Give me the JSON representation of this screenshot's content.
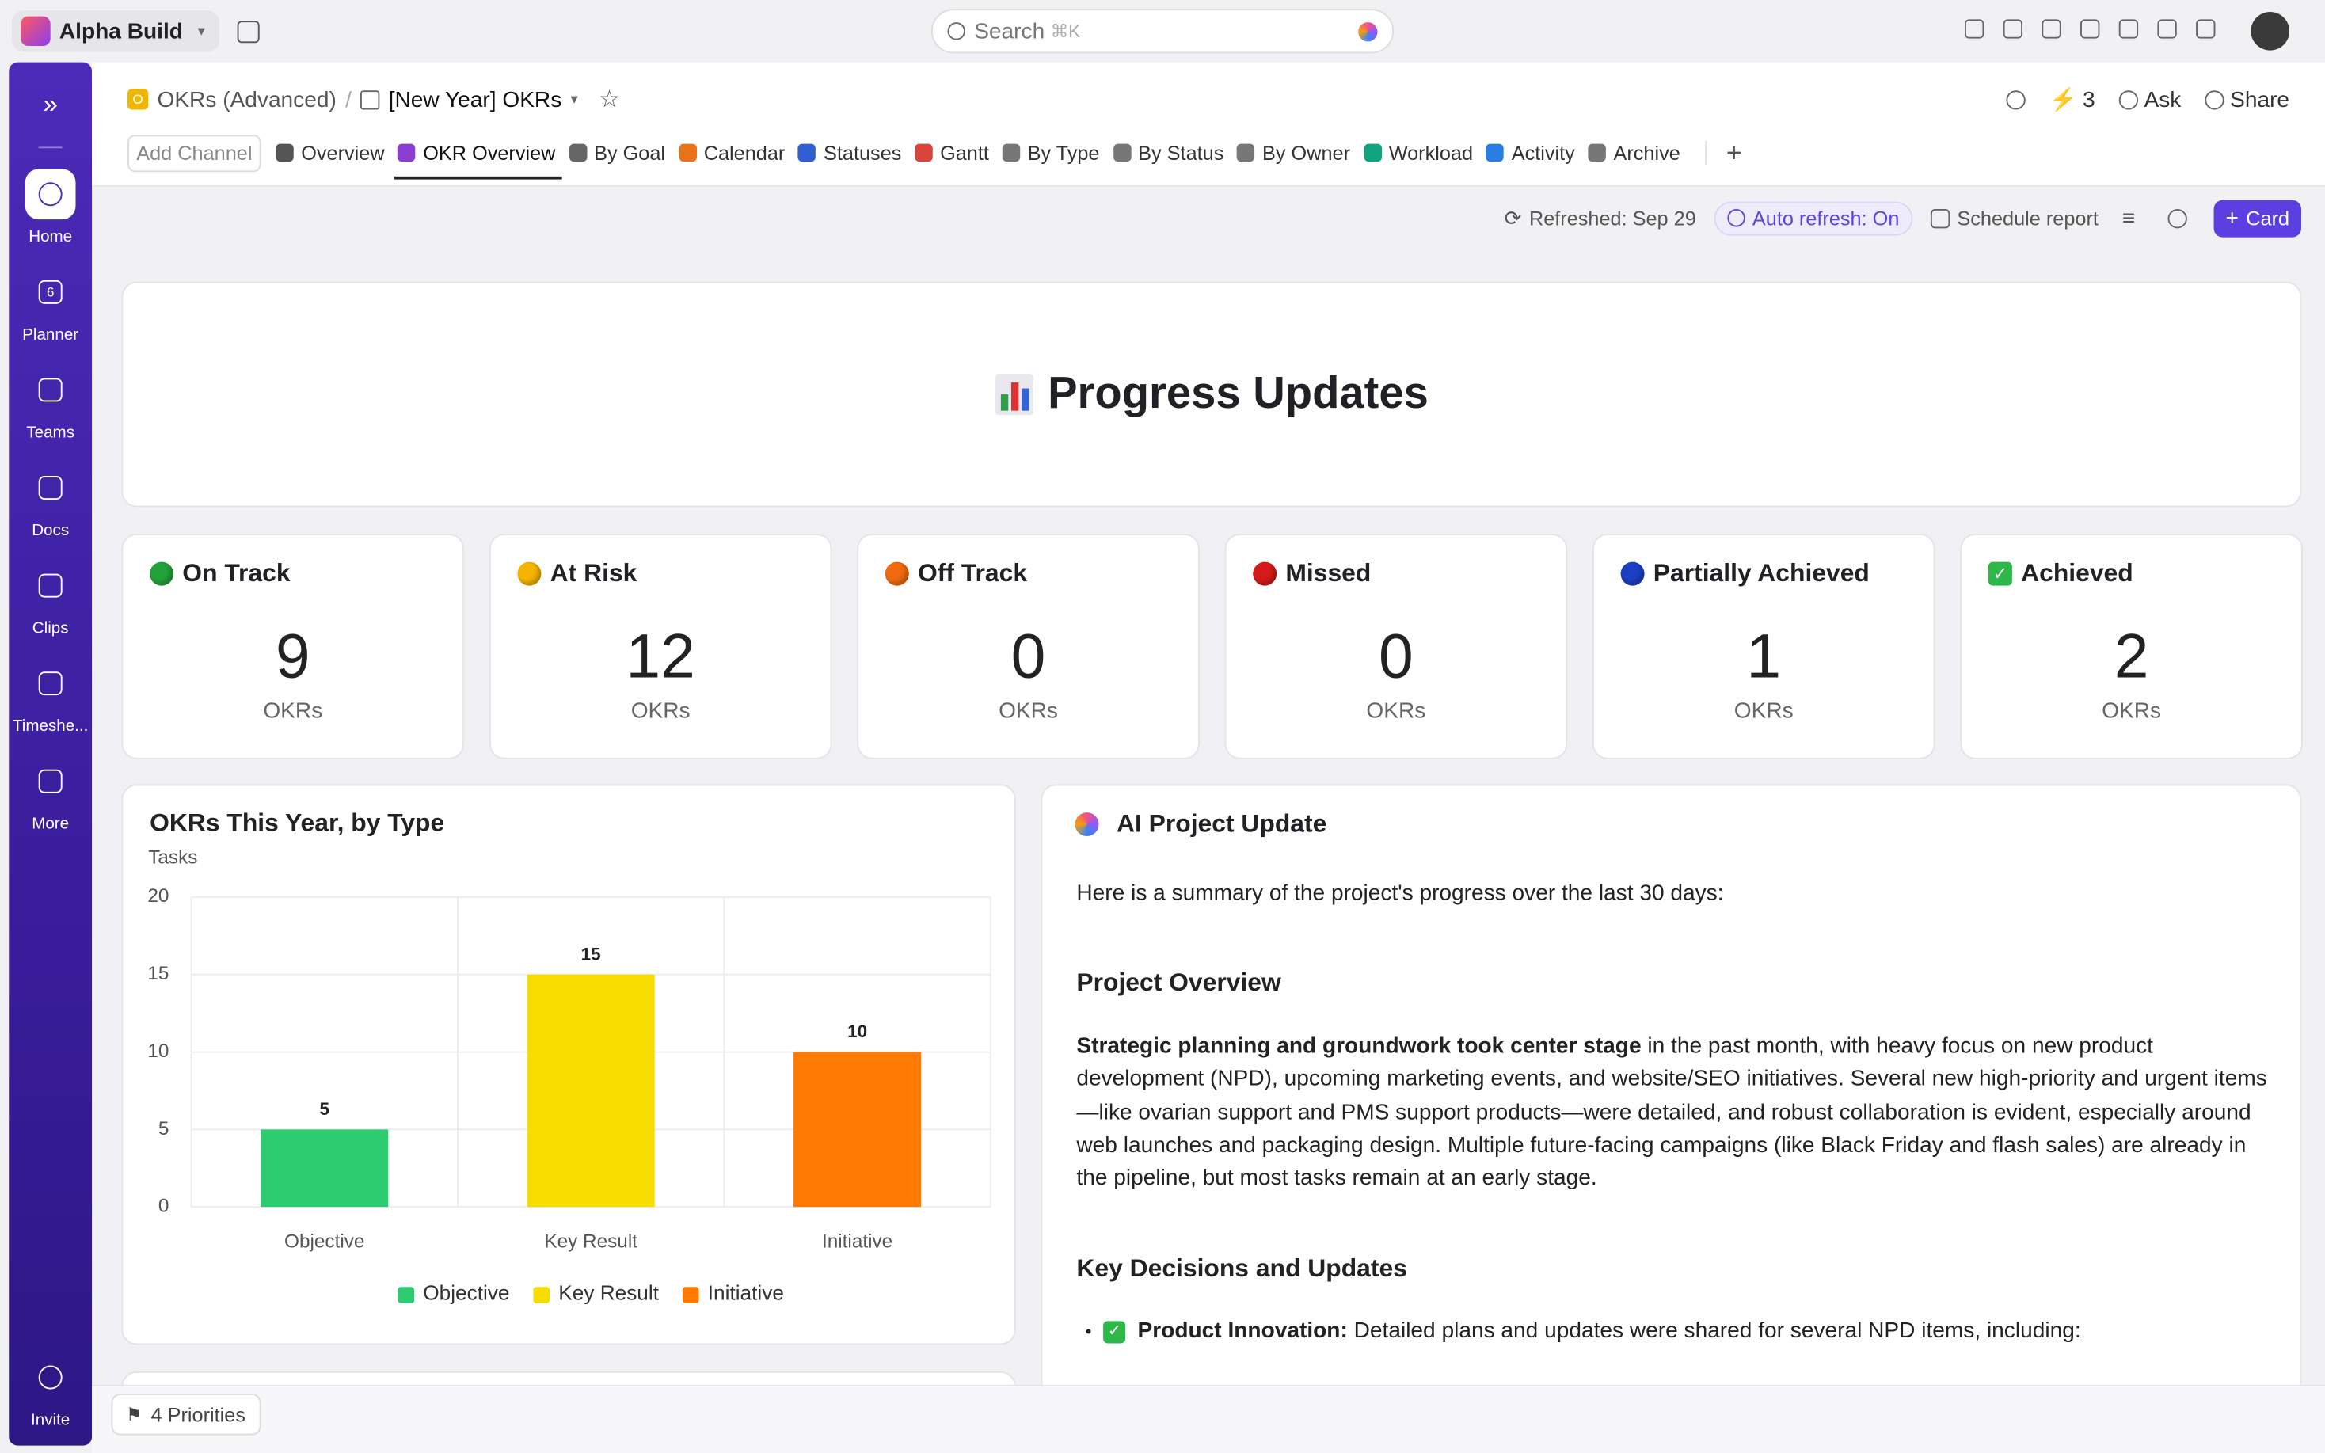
{
  "workspace": "Alpha Build",
  "search": {
    "placeholder": "Search",
    "shortcut": "⌘K"
  },
  "sidebar": {
    "planner_day": "6",
    "items": [
      "Home",
      "Planner",
      "Teams",
      "Docs",
      "Clips",
      "Timeshe...",
      "More"
    ],
    "invite": "Invite"
  },
  "breadcrumb": {
    "space_initial": "O",
    "space": "OKRs (Advanced)",
    "folder": "[New Year] OKRs"
  },
  "header_actions": {
    "ai_count": 3,
    "ask": "Ask",
    "share": "Share"
  },
  "tabs": {
    "add_channel": "Add Channel",
    "items": [
      {
        "label": "Overview",
        "color": "#555555"
      },
      {
        "label": "OKR Overview",
        "color": "#8a3fd1",
        "active": true
      },
      {
        "label": "By Goal",
        "color": "#666666"
      },
      {
        "label": "Calendar",
        "color": "#e8731a"
      },
      {
        "label": "Statuses",
        "color": "#3060d0"
      },
      {
        "label": "Gantt",
        "color": "#d9453b"
      },
      {
        "label": "By Type",
        "color": "#777777"
      },
      {
        "label": "By Status",
        "color": "#777777"
      },
      {
        "label": "By Owner",
        "color": "#777777"
      },
      {
        "label": "Workload",
        "color": "#12a37f"
      },
      {
        "label": "Activity",
        "color": "#2a7de1"
      },
      {
        "label": "Archive",
        "color": "#777777"
      }
    ]
  },
  "toolbar": {
    "refreshed": "Refreshed: Sep 29",
    "auto_refresh": "Auto refresh: On",
    "schedule": "Schedule report",
    "card": "Card"
  },
  "banner": {
    "title": "Progress Updates"
  },
  "status_cards": [
    {
      "label": "On Track",
      "count": 9,
      "unit": "OKRs",
      "icon_color": "#22a33a",
      "icon_shape": "circle"
    },
    {
      "label": "At Risk",
      "count": 12,
      "unit": "OKRs",
      "icon_color": "#f5b400",
      "icon_shape": "circle"
    },
    {
      "label": "Off Track",
      "count": 0,
      "unit": "OKRs",
      "icon_color": "#f06a0f",
      "icon_shape": "circle"
    },
    {
      "label": "Missed",
      "count": 0,
      "unit": "OKRs",
      "icon_color": "#d61a1a",
      "icon_shape": "circle"
    },
    {
      "label": "Partially Achieved",
      "count": 1,
      "unit": "OKRs",
      "icon_color": "#1a3fc4",
      "icon_shape": "circle"
    },
    {
      "label": "Achieved",
      "count": 2,
      "unit": "OKRs",
      "icon_color": "#2eb84a",
      "icon_shape": "check"
    }
  ],
  "chart_data": {
    "type": "bar",
    "title": "OKRs This Year, by Type",
    "y_label": "Tasks",
    "categories": [
      "Objective",
      "Key Result",
      "Initiative"
    ],
    "values": [
      5,
      15,
      10
    ],
    "colors": [
      "#2ecc71",
      "#f7dc00",
      "#ff7a00"
    ],
    "ylim": [
      0,
      20
    ],
    "yticks": [
      0,
      5,
      10,
      15,
      20
    ],
    "grid": true,
    "legend": "bottom"
  },
  "ai_update": {
    "title": "AI Project Update",
    "intro": "Here is a summary of the project's progress over the last 30 days:",
    "sections": [
      {
        "heading": "Project Overview",
        "bold": "Strategic planning and groundwork took center stage",
        "text": " in the past month, with heavy focus on new product development (NPD), upcoming marketing events, and website/SEO initiatives. Several new high-priority and urgent items—like ovarian support and PMS support products—were detailed, and robust collaboration is evident, especially around web launches and packaging design. Multiple future-facing campaigns (like Black Friday and flash sales) are already in the pipeline, but most tasks remain at an early stage."
      },
      {
        "heading": "Key Decisions and Updates",
        "bold": "Product Innovation:",
        "text": " Detailed plans and updates were shared for several NPD items, including:"
      }
    ]
  },
  "footer": {
    "priorities": "4 Priorities"
  }
}
